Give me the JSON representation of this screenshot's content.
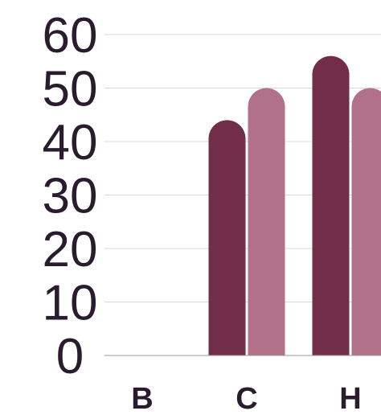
{
  "chart_data": {
    "type": "bar",
    "title": "",
    "xlabel": "",
    "ylabel": "",
    "ylim": [
      0,
      60
    ],
    "yticks": [
      "0",
      "10",
      "20",
      "30",
      "40",
      "50",
      "60"
    ],
    "grid": true,
    "categories": [
      "B",
      "C",
      "H"
    ],
    "series": [
      {
        "values": [
          0,
          44,
          56
        ],
        "color": "#722d4a"
      },
      {
        "values": [
          0,
          50,
          50
        ],
        "color": "#b07189"
      }
    ]
  }
}
